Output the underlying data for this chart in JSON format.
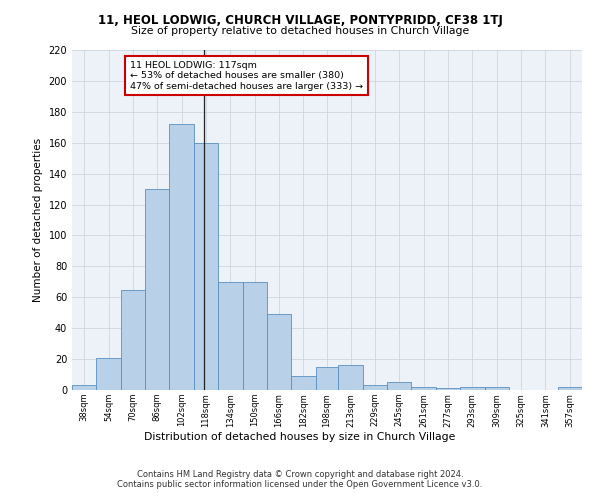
{
  "title": "11, HEOL LODWIG, CHURCH VILLAGE, PONTYPRIDD, CF38 1TJ",
  "subtitle": "Size of property relative to detached houses in Church Village",
  "xlabel": "Distribution of detached houses by size in Church Village",
  "ylabel": "Number of detached properties",
  "bar_color": "#b8d0e8",
  "bar_edge_color": "#5a8fc0",
  "property_line_x": 117,
  "annotation_text": "11 HEOL LODWIG: 117sqm\n← 53% of detached houses are smaller (380)\n47% of semi-detached houses are larger (333) →",
  "annotation_box_color": "#ffffff",
  "annotation_box_edge": "#cc0000",
  "ylim": [
    0,
    220
  ],
  "yticks": [
    0,
    20,
    40,
    60,
    80,
    100,
    120,
    140,
    160,
    180,
    200,
    220
  ],
  "footer": "Contains HM Land Registry data © Crown copyright and database right 2024.\nContains public sector information licensed under the Open Government Licence v3.0.",
  "bg_color": "#edf2f9",
  "grid_color": "#c8d0dc",
  "bin_edges": [
    30,
    46,
    62,
    78,
    94,
    110,
    126,
    142,
    158,
    174,
    190,
    205,
    221,
    237,
    253,
    269,
    285,
    301,
    317,
    333,
    349,
    365
  ],
  "bar_heights": [
    3,
    21,
    65,
    130,
    172,
    160,
    70,
    70,
    49,
    9,
    15,
    16,
    3,
    5,
    2,
    1,
    2,
    2,
    0,
    0,
    2
  ],
  "xlabels": [
    "38sqm",
    "54sqm",
    "70sqm",
    "86sqm",
    "102sqm",
    "118sqm",
    "134sqm",
    "150sqm",
    "166sqm",
    "182sqm",
    "198sqm",
    "213sqm",
    "229sqm",
    "245sqm",
    "261sqm",
    "277sqm",
    "293sqm",
    "309sqm",
    "325sqm",
    "341sqm",
    "357sqm"
  ]
}
